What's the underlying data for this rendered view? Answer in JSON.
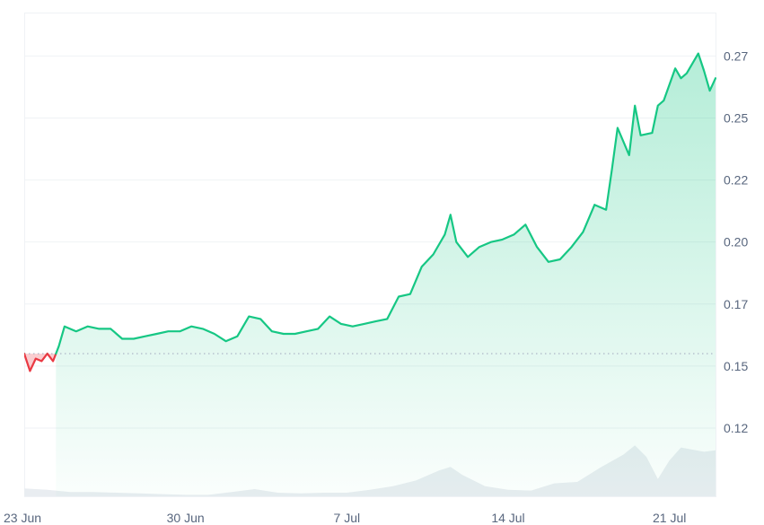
{
  "colors": {
    "up": "#16c784",
    "down": "#ea3943",
    "grid": "#eff2f5",
    "volume": "#e9edf1",
    "baseline": "#a6b0c3",
    "axis_text": "#58667e"
  },
  "chart_data": {
    "type": "area",
    "title": "",
    "xlabel": "",
    "ylabel": "",
    "ylim": [
      0.0975,
      0.2925
    ],
    "xlim": [
      "2024-06-23",
      "2024-07-23"
    ],
    "grid": true,
    "baseline_value": 0.155,
    "y_ticks": [
      {
        "value": 0.125,
        "label": "0.12"
      },
      {
        "value": 0.15,
        "label": "0.15"
      },
      {
        "value": 0.175,
        "label": "0.17"
      },
      {
        "value": 0.2,
        "label": "0.20"
      },
      {
        "value": 0.225,
        "label": "0.22"
      },
      {
        "value": 0.25,
        "label": "0.25"
      },
      {
        "value": 0.275,
        "label": "0.27"
      }
    ],
    "x_ticks": [
      {
        "value": "2024-06-23",
        "label": "23 Jun"
      },
      {
        "value": "2024-06-30",
        "label": "30 Jun"
      },
      {
        "value": "2024-07-07",
        "label": "7 Jul"
      },
      {
        "value": "2024-07-14",
        "label": "14 Jul"
      },
      {
        "value": "2024-07-21",
        "label": "21 Jul"
      }
    ],
    "series": [
      {
        "points": [
          [
            "2024-06-23 00:00",
            0.155
          ],
          [
            "2024-06-23 06:00",
            0.148
          ],
          [
            "2024-06-23 12:00",
            0.153
          ],
          [
            "2024-06-23 18:00",
            0.152
          ],
          [
            "2024-06-24 00:00",
            0.155
          ],
          [
            "2024-06-24 06:00",
            0.152
          ],
          [
            "2024-06-24 12:00",
            0.158
          ],
          [
            "2024-06-24 18:00",
            0.166
          ],
          [
            "2024-06-25 06:00",
            0.164
          ],
          [
            "2024-06-25 18:00",
            0.166
          ],
          [
            "2024-06-26 06:00",
            0.165
          ],
          [
            "2024-06-26 18:00",
            0.165
          ],
          [
            "2024-06-27 06:00",
            0.161
          ],
          [
            "2024-06-27 18:00",
            0.161
          ],
          [
            "2024-06-28 06:00",
            0.162
          ],
          [
            "2024-06-28 18:00",
            0.163
          ],
          [
            "2024-06-29 06:00",
            0.164
          ],
          [
            "2024-06-29 18:00",
            0.164
          ],
          [
            "2024-06-30 06:00",
            0.166
          ],
          [
            "2024-06-30 18:00",
            0.165
          ],
          [
            "2024-07-01 06:00",
            0.163
          ],
          [
            "2024-07-01 18:00",
            0.16
          ],
          [
            "2024-07-02 06:00",
            0.162
          ],
          [
            "2024-07-02 18:00",
            0.17
          ],
          [
            "2024-07-03 06:00",
            0.169
          ],
          [
            "2024-07-03 18:00",
            0.164
          ],
          [
            "2024-07-04 06:00",
            0.163
          ],
          [
            "2024-07-04 18:00",
            0.163
          ],
          [
            "2024-07-05 06:00",
            0.164
          ],
          [
            "2024-07-05 18:00",
            0.165
          ],
          [
            "2024-07-06 06:00",
            0.17
          ],
          [
            "2024-07-06 18:00",
            0.167
          ],
          [
            "2024-07-07 06:00",
            0.166
          ],
          [
            "2024-07-07 18:00",
            0.167
          ],
          [
            "2024-07-08 06:00",
            0.168
          ],
          [
            "2024-07-08 18:00",
            0.169
          ],
          [
            "2024-07-09 06:00",
            0.178
          ],
          [
            "2024-07-09 18:00",
            0.179
          ],
          [
            "2024-07-10 06:00",
            0.19
          ],
          [
            "2024-07-10 18:00",
            0.195
          ],
          [
            "2024-07-11 06:00",
            0.203
          ],
          [
            "2024-07-11 12:00",
            0.211
          ],
          [
            "2024-07-11 18:00",
            0.2
          ],
          [
            "2024-07-12 06:00",
            0.194
          ],
          [
            "2024-07-12 18:00",
            0.198
          ],
          [
            "2024-07-13 06:00",
            0.2
          ],
          [
            "2024-07-13 18:00",
            0.201
          ],
          [
            "2024-07-14 06:00",
            0.203
          ],
          [
            "2024-07-14 18:00",
            0.207
          ],
          [
            "2024-07-15 06:00",
            0.198
          ],
          [
            "2024-07-15 18:00",
            0.192
          ],
          [
            "2024-07-16 06:00",
            0.193
          ],
          [
            "2024-07-16 18:00",
            0.198
          ],
          [
            "2024-07-17 06:00",
            0.204
          ],
          [
            "2024-07-17 18:00",
            0.215
          ],
          [
            "2024-07-18 06:00",
            0.213
          ],
          [
            "2024-07-18 12:00",
            0.229
          ],
          [
            "2024-07-18 18:00",
            0.246
          ],
          [
            "2024-07-19 06:00",
            0.235
          ],
          [
            "2024-07-19 12:00",
            0.255
          ],
          [
            "2024-07-19 18:00",
            0.243
          ],
          [
            "2024-07-20 06:00",
            0.244
          ],
          [
            "2024-07-20 12:00",
            0.255
          ],
          [
            "2024-07-20 18:00",
            0.257
          ],
          [
            "2024-07-21 06:00",
            0.27
          ],
          [
            "2024-07-21 12:00",
            0.266
          ],
          [
            "2024-07-21 18:00",
            0.268
          ],
          [
            "2024-07-22 06:00",
            0.276
          ],
          [
            "2024-07-22 12:00",
            0.269
          ],
          [
            "2024-07-22 18:00",
            0.261
          ],
          [
            "2024-07-23 00:00",
            0.266
          ]
        ]
      }
    ],
    "volume_series": [
      [
        "2024-06-23 00:00",
        0.11
      ],
      [
        "2024-06-24 00:00",
        0.09
      ],
      [
        "2024-06-25 00:00",
        0.06
      ],
      [
        "2024-06-26 00:00",
        0.06
      ],
      [
        "2024-06-27 00:00",
        0.05
      ],
      [
        "2024-06-28 00:00",
        0.04
      ],
      [
        "2024-06-29 00:00",
        0.03
      ],
      [
        "2024-06-30 00:00",
        0.02
      ],
      [
        "2024-07-01 00:00",
        0.02
      ],
      [
        "2024-07-02 00:00",
        0.06
      ],
      [
        "2024-07-03 00:00",
        0.1
      ],
      [
        "2024-07-04 00:00",
        0.05
      ],
      [
        "2024-07-05 00:00",
        0.04
      ],
      [
        "2024-07-06 00:00",
        0.05
      ],
      [
        "2024-07-07 00:00",
        0.05
      ],
      [
        "2024-07-08 00:00",
        0.09
      ],
      [
        "2024-07-09 00:00",
        0.14
      ],
      [
        "2024-07-10 00:00",
        0.22
      ],
      [
        "2024-07-11 00:00",
        0.36
      ],
      [
        "2024-07-11 12:00",
        0.41
      ],
      [
        "2024-07-12 00:00",
        0.3
      ],
      [
        "2024-07-13 00:00",
        0.14
      ],
      [
        "2024-07-14 00:00",
        0.09
      ],
      [
        "2024-07-15 00:00",
        0.08
      ],
      [
        "2024-07-16 00:00",
        0.18
      ],
      [
        "2024-07-17 00:00",
        0.2
      ],
      [
        "2024-07-18 00:00",
        0.4
      ],
      [
        "2024-07-19 00:00",
        0.58
      ],
      [
        "2024-07-19 12:00",
        0.71
      ],
      [
        "2024-07-20 00:00",
        0.55
      ],
      [
        "2024-07-20 12:00",
        0.24
      ],
      [
        "2024-07-21 00:00",
        0.5
      ],
      [
        "2024-07-21 12:00",
        0.68
      ],
      [
        "2024-07-22 00:00",
        0.65
      ],
      [
        "2024-07-22 12:00",
        0.62
      ],
      [
        "2024-07-23 00:00",
        0.64
      ]
    ]
  }
}
